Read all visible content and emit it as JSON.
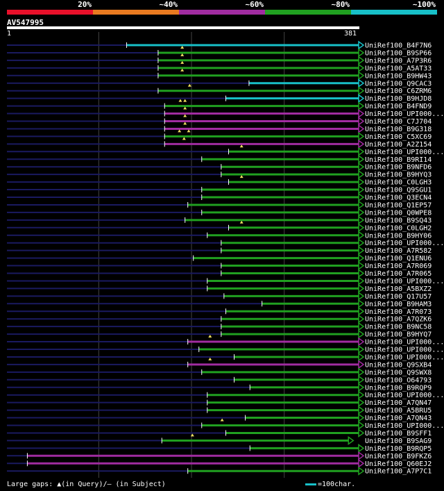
{
  "legend": [
    {
      "label": "20%",
      "color": "#e8102a"
    },
    {
      "label": "~40%",
      "color": "#e87a20"
    },
    {
      "label": "~60%",
      "color": "#a02ca0"
    },
    {
      "label": "~80%",
      "color": "#20a020"
    },
    {
      "label": "~100%",
      "color": "#18c0c8"
    }
  ],
  "query": {
    "name": "AV547995",
    "start": "1",
    "end": "381",
    "length": 381
  },
  "footer": {
    "gaps_text": "Large gaps: ▲(in Query)/– (in Subject)",
    "scale_text": "=100char."
  },
  "colors": {
    "cyan": "#18c0c8",
    "green": "#20a020",
    "purple": "#a02ca0",
    "dim": "#1a1a60",
    "grid": "#444444"
  },
  "hits": [
    {
      "label": "UniRef100_B4F7N6",
      "color": "cyan",
      "start": 130,
      "end": 381,
      "gaps": []
    },
    {
      "label": "UniRef100_B9SP66",
      "color": "green",
      "start": 164,
      "end": 381,
      "gaps": [
        190
      ]
    },
    {
      "label": "UniRef100_A7P3R6",
      "color": "green",
      "start": 164,
      "end": 381,
      "gaps": [
        190
      ]
    },
    {
      "label": "UniRef100_A5AT33",
      "color": "green",
      "start": 164,
      "end": 381,
      "gaps": [
        190
      ]
    },
    {
      "label": "UniRef100_B9HW43",
      "color": "green",
      "start": 164,
      "end": 381,
      "gaps": [
        190
      ]
    },
    {
      "label": "UniRef100_Q9CAC3",
      "color": "cyan",
      "start": 262,
      "end": 381,
      "gaps": []
    },
    {
      "label": "UniRef100_C6ZRM6",
      "color": "green",
      "start": 164,
      "end": 381,
      "gaps": [
        198
      ]
    },
    {
      "label": "UniRef100_B9HJD8",
      "color": "cyan",
      "start": 237,
      "end": 381,
      "gaps": []
    },
    {
      "label": "UniRef100_B4FND9",
      "color": "green",
      "start": 171,
      "end": 381,
      "gaps": [
        188,
        193
      ]
    },
    {
      "label": "UniRef100_UPI000...",
      "color": "purple",
      "start": 171,
      "end": 381,
      "gaps": [
        193
      ]
    },
    {
      "label": "UniRef100_C7J704",
      "color": "purple",
      "start": 171,
      "end": 381,
      "gaps": [
        193
      ]
    },
    {
      "label": "UniRef100_B9G318",
      "color": "purple",
      "start": 171,
      "end": 381,
      "gaps": [
        193
      ]
    },
    {
      "label": "UniRef100_C5XC69",
      "color": "green",
      "start": 171,
      "end": 381,
      "gaps": [
        187,
        197
      ]
    },
    {
      "label": "UniRef100_A2Z154",
      "color": "purple",
      "start": 171,
      "end": 381,
      "gaps": [
        192
      ]
    },
    {
      "label": "UniRef100_UPI000...",
      "color": "green",
      "start": 240,
      "end": 381,
      "gaps": [
        254
      ]
    },
    {
      "label": "UniRef100_B9RI14",
      "color": "green",
      "start": 211,
      "end": 381,
      "gaps": []
    },
    {
      "label": "UniRef100_B9NFD6",
      "color": "green",
      "start": 232,
      "end": 381,
      "gaps": []
    },
    {
      "label": "UniRef100_B9HYQ3",
      "color": "green",
      "start": 232,
      "end": 381,
      "gaps": []
    },
    {
      "label": "UniRef100_C0LGH3",
      "color": "green",
      "start": 240,
      "end": 381,
      "gaps": [
        254
      ]
    },
    {
      "label": "UniRef100_Q9SGU1",
      "color": "green",
      "start": 211,
      "end": 381,
      "gaps": []
    },
    {
      "label": "UniRef100_Q3ECN4",
      "color": "green",
      "start": 211,
      "end": 381,
      "gaps": []
    },
    {
      "label": "UniRef100_Q1EP57",
      "color": "green",
      "start": 196,
      "end": 381,
      "gaps": []
    },
    {
      "label": "UniRef100_Q0WPE8",
      "color": "green",
      "start": 211,
      "end": 381,
      "gaps": []
    },
    {
      "label": "UniRef100_B9SQ43",
      "color": "green",
      "start": 193,
      "end": 381,
      "gaps": []
    },
    {
      "label": "UniRef100_C0LGH2",
      "color": "green",
      "start": 240,
      "end": 381,
      "gaps": [
        254
      ]
    },
    {
      "label": "UniRef100_B9HY06",
      "color": "green",
      "start": 217,
      "end": 381,
      "gaps": []
    },
    {
      "label": "UniRef100_UPI000...",
      "color": "green",
      "start": 232,
      "end": 381,
      "gaps": []
    },
    {
      "label": "UniRef100_A7R582",
      "color": "green",
      "start": 232,
      "end": 381,
      "gaps": []
    },
    {
      "label": "UniRef100_Q1ENU6",
      "color": "green",
      "start": 202,
      "end": 381,
      "gaps": []
    },
    {
      "label": "UniRef100_A7R069",
      "color": "green",
      "start": 232,
      "end": 381,
      "gaps": []
    },
    {
      "label": "UniRef100_A7R065",
      "color": "green",
      "start": 232,
      "end": 381,
      "gaps": []
    },
    {
      "label": "UniRef100_UPI000...",
      "color": "green",
      "start": 217,
      "end": 381,
      "gaps": []
    },
    {
      "label": "UniRef100_A5BXZ2",
      "color": "green",
      "start": 217,
      "end": 381,
      "gaps": []
    },
    {
      "label": "UniRef100_Q17U57",
      "color": "green",
      "start": 235,
      "end": 381,
      "gaps": []
    },
    {
      "label": "UniRef100_B9HAM3",
      "color": "green",
      "start": 276,
      "end": 381,
      "gaps": []
    },
    {
      "label": "UniRef100_A7R073",
      "color": "green",
      "start": 237,
      "end": 381,
      "gaps": []
    },
    {
      "label": "UniRef100_A7QZK6",
      "color": "green",
      "start": 232,
      "end": 381,
      "gaps": []
    },
    {
      "label": "UniRef100_B9NC58",
      "color": "green",
      "start": 232,
      "end": 381,
      "gaps": []
    },
    {
      "label": "UniRef100_B9HYQ7",
      "color": "green",
      "start": 232,
      "end": 381,
      "gaps": []
    },
    {
      "label": "UniRef100_UPI000...",
      "color": "purple",
      "start": 196,
      "end": 381,
      "gaps": [
        220
      ]
    },
    {
      "label": "UniRef100_UPI000...",
      "color": "green",
      "start": 208,
      "end": 381,
      "gaps": []
    },
    {
      "label": "UniRef100_UPI000...",
      "color": "green",
      "start": 246,
      "end": 381,
      "gaps": []
    },
    {
      "label": "UniRef100_Q9SXB4",
      "color": "purple",
      "start": 196,
      "end": 381,
      "gaps": [
        220
      ]
    },
    {
      "label": "UniRef100_Q9SWX8",
      "color": "green",
      "start": 211,
      "end": 381,
      "gaps": []
    },
    {
      "label": "UniRef100_O64793",
      "color": "green",
      "start": 246,
      "end": 381,
      "gaps": []
    },
    {
      "label": "UniRef100_B9RQP9",
      "color": "green",
      "start": 263,
      "end": 381,
      "gaps": []
    },
    {
      "label": "UniRef100_UPI000...",
      "color": "green",
      "start": 217,
      "end": 381,
      "gaps": []
    },
    {
      "label": "UniRef100_A7QN47",
      "color": "green",
      "start": 217,
      "end": 381,
      "gaps": []
    },
    {
      "label": "UniRef100_A5BRU5",
      "color": "green",
      "start": 217,
      "end": 381,
      "gaps": []
    },
    {
      "label": "UniRef100_A7QN43",
      "color": "green",
      "start": 258,
      "end": 381,
      "gaps": []
    },
    {
      "label": "UniRef100_UPI000...",
      "color": "green",
      "start": 211,
      "end": 381,
      "gaps": [
        233
      ]
    },
    {
      "label": "UniRef100_B9SFF1",
      "color": "green",
      "start": 237,
      "end": 381,
      "gaps": []
    },
    {
      "label": "UniRef100_B9SAG9",
      "color": "green",
      "start": 168,
      "end": 370,
      "gaps": [
        201
      ]
    },
    {
      "label": "UniRef100_B9RQP5",
      "color": "green",
      "start": 263,
      "end": 381,
      "gaps": []
    },
    {
      "label": "UniRef100_B9FKZ6",
      "color": "purple",
      "start": 23,
      "end": 381,
      "gaps": []
    },
    {
      "label": "UniRef100_Q60EJ2",
      "color": "purple",
      "start": 23,
      "end": 381,
      "gaps": []
    },
    {
      "label": "UniRef100_A7P7C1",
      "color": "green",
      "start": 196,
      "end": 381,
      "gaps": []
    }
  ]
}
